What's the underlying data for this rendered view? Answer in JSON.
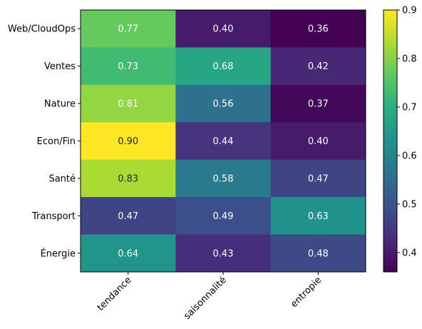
{
  "chart_data": {
    "type": "heatmap",
    "title": "",
    "xlabel": "",
    "ylabel": "",
    "x_categories": [
      "tendance",
      "saisonnalité",
      "entropie"
    ],
    "y_categories": [
      "Web/CloudOps",
      "Ventes",
      "Nature",
      "Econ/Fin",
      "Santé",
      "Transport",
      "Énergie"
    ],
    "values": [
      [
        0.77,
        0.4,
        0.36
      ],
      [
        0.73,
        0.68,
        0.42
      ],
      [
        0.81,
        0.56,
        0.37
      ],
      [
        0.9,
        0.44,
        0.4
      ],
      [
        0.83,
        0.58,
        0.47
      ],
      [
        0.47,
        0.49,
        0.63
      ],
      [
        0.64,
        0.43,
        0.48
      ]
    ],
    "value_labels": [
      [
        "0.77",
        "0.40",
        "0.36"
      ],
      [
        "0.73",
        "0.68",
        "0.42"
      ],
      [
        "0.81",
        "0.56",
        "0.37"
      ],
      [
        "0.90",
        "0.44",
        "0.40"
      ],
      [
        "0.83",
        "0.58",
        "0.47"
      ],
      [
        "0.47",
        "0.49",
        "0.63"
      ],
      [
        "0.64",
        "0.43",
        "0.48"
      ]
    ],
    "colormap": "viridis",
    "vmin": 0.36,
    "vmax": 0.9,
    "colorbar": {
      "ticks": [
        0.4,
        0.5,
        0.6,
        0.7,
        0.8,
        0.9
      ],
      "tick_labels": [
        "0.4",
        "0.5",
        "0.6",
        "0.7",
        "0.8",
        "0.9"
      ],
      "placement": "right"
    },
    "grid": false
  }
}
